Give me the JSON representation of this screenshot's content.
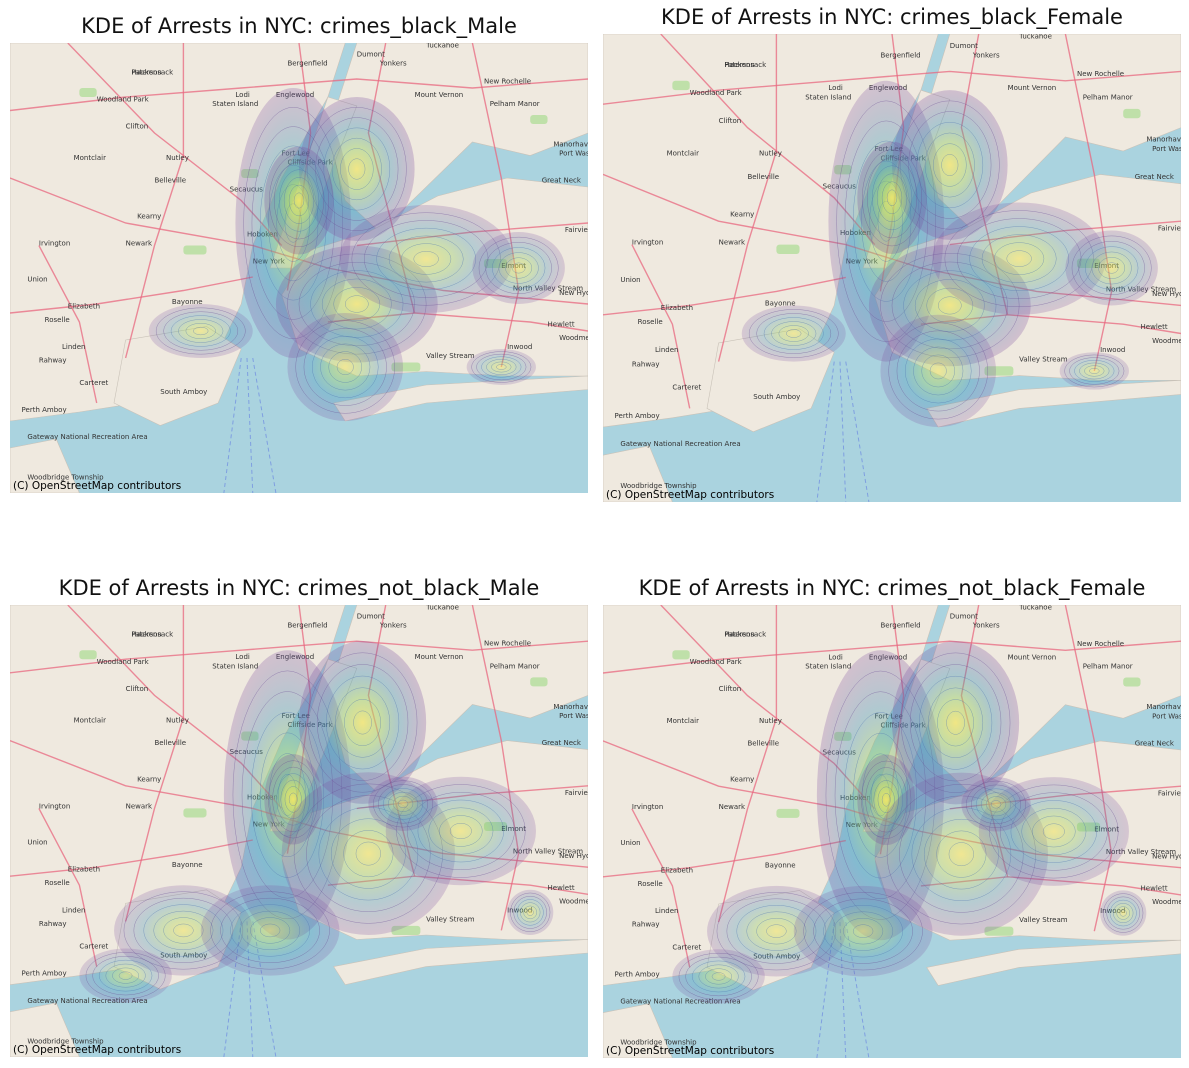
{
  "figure": {
    "panels": [
      {
        "id": "black-male",
        "title": "KDE of Arrests in NYC: crimes_black_Male",
        "attribution": "(C) OpenStreetMap contributors",
        "hotspots": "manhattan-bronx-brooklyn"
      },
      {
        "id": "black-female",
        "title": "KDE of Arrests in NYC: crimes_black_Female",
        "attribution": "(C) OpenStreetMap contributors",
        "hotspots": "manhattan-bronx-brooklyn"
      },
      {
        "id": "not-black-male",
        "title": "KDE of Arrests in NYC: crimes_not_black_Male",
        "attribution": "(C) OpenStreetMap contributors",
        "hotspots": "manhattan-bronx"
      },
      {
        "id": "not-black-female",
        "title": "KDE of Arrests in NYC: crimes_not_black_Female",
        "attribution": "(C) OpenStreetMap contributors",
        "hotspots": "manhattan-bronx"
      }
    ],
    "place_labels": [
      "Paterson",
      "Yonkers",
      "New Rochelle",
      "Newark",
      "New York",
      "Elizabeth",
      "Bayonne",
      "Hoboken",
      "Kearny",
      "Irvington",
      "Montclair",
      "Clifton",
      "Englewood",
      "Manorhaven",
      "Port Washington",
      "Great Neck",
      "Elmont",
      "North Valley Stream",
      "Hewlett",
      "Woodmere",
      "Inwood",
      "Rahway",
      "Carteret",
      "Linden",
      "Roselle",
      "Union",
      "Secaucus",
      "Fort Lee",
      "Woodland Park",
      "Nutley",
      "Belleville",
      "Bergenfield",
      "Dumont",
      "Tuckahoe",
      "Mount Vernon",
      "Pelham Manor",
      "Cliffside Park",
      "Fairview",
      "New Hyde Park",
      "Valley Stream",
      "Gateway National Recreation Area",
      "Perth Amboy",
      "Woodbridge Township",
      "South Amboy",
      "Staten Island",
      "Lodi",
      "Hackensack"
    ],
    "colors": {
      "water": "#aad3df",
      "land": "#efe9df",
      "road": "#e8677f",
      "kde_low": "#7b4a9e",
      "kde_mid": "#3f8fb5",
      "kde_high": "#f2e55a"
    }
  }
}
